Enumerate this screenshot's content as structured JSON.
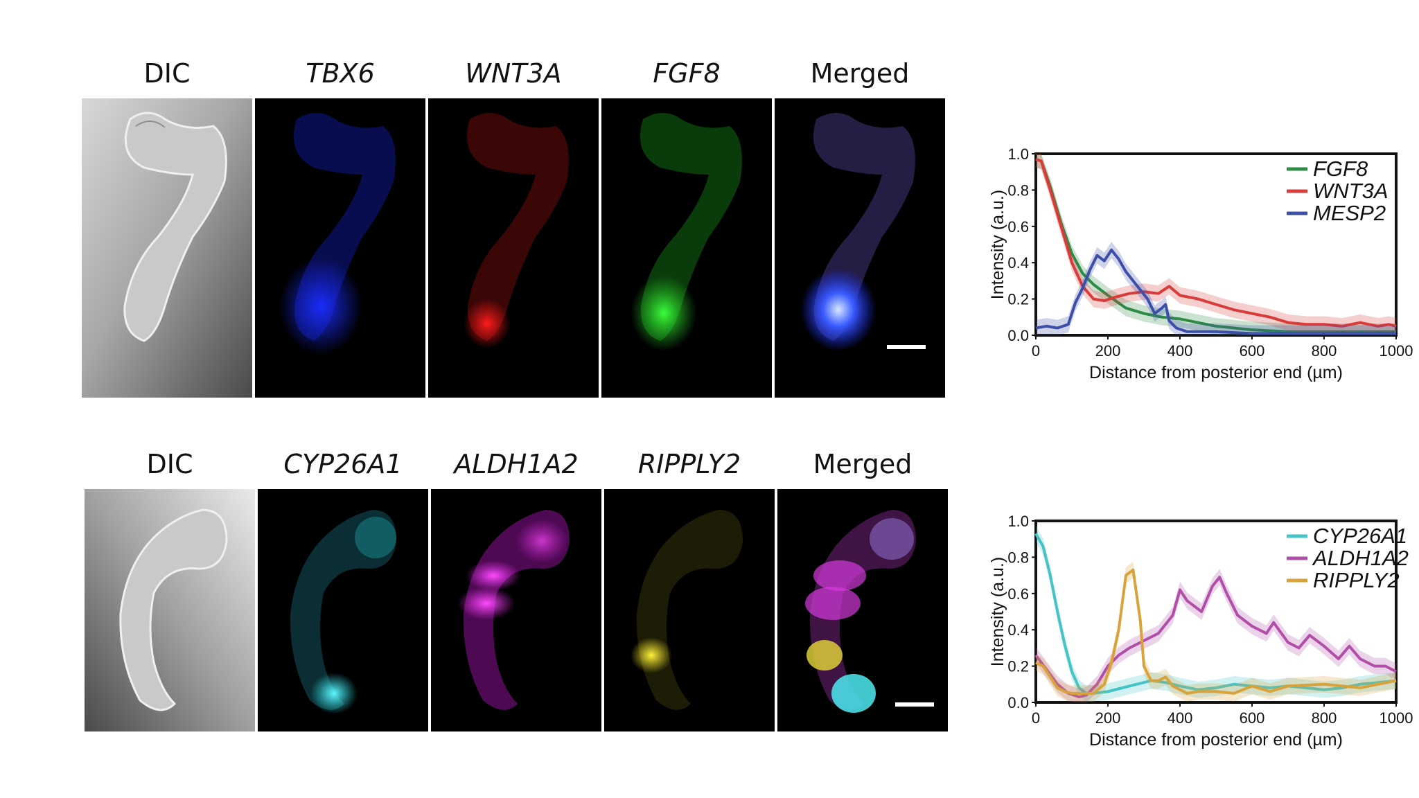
{
  "figure": {
    "row1": {
      "labels": [
        "DIC",
        "TBX6",
        "WNT3A",
        "FGF8",
        "Merged"
      ],
      "italic": [
        false,
        true,
        true,
        true,
        false
      ]
    },
    "row2": {
      "labels": [
        "DIC",
        "CYP26A1",
        "ALDH1A2",
        "RIPPLY2",
        "Merged"
      ],
      "italic": [
        false,
        true,
        true,
        true,
        false
      ]
    },
    "colors": {
      "tbx6": "#1a2dff",
      "wnt3a": "#e01616",
      "fgf8": "#22c322",
      "cyp26a1": "#2ee6ee",
      "aldh1a2": "#e02ce6",
      "ripply2": "#eee02a"
    }
  },
  "chart_data": [
    {
      "type": "line",
      "xlabel": "Distance from posterior end (µm)",
      "ylabel": "Intensity (a.u.)",
      "xlim": [
        0,
        1000
      ],
      "ylim": [
        0,
        1.0
      ],
      "xticks": [
        0,
        200,
        400,
        600,
        800,
        1000
      ],
      "yticks": [
        0.0,
        0.2,
        0.4,
        0.6,
        0.8,
        1.0
      ],
      "legend_position": "top-right",
      "series": [
        {
          "name": "FGF8",
          "color": "#2e8b45",
          "x": [
            0,
            15,
            40,
            70,
            100,
            130,
            160,
            200,
            250,
            300,
            350,
            400,
            500,
            600,
            700,
            800,
            900,
            1000
          ],
          "y": [
            0.97,
            0.96,
            0.82,
            0.62,
            0.45,
            0.34,
            0.28,
            0.22,
            0.15,
            0.12,
            0.1,
            0.09,
            0.05,
            0.03,
            0.02,
            0.02,
            0.02,
            0.02
          ]
        },
        {
          "name": "WNT3A",
          "color": "#d93a3a",
          "x": [
            0,
            15,
            40,
            70,
            100,
            130,
            160,
            190,
            220,
            260,
            300,
            340,
            370,
            400,
            450,
            500,
            550,
            600,
            650,
            700,
            750,
            800,
            850,
            900,
            950,
            980,
            1000
          ],
          "y": [
            0.97,
            0.96,
            0.8,
            0.6,
            0.4,
            0.27,
            0.2,
            0.19,
            0.21,
            0.23,
            0.24,
            0.23,
            0.27,
            0.22,
            0.2,
            0.17,
            0.14,
            0.12,
            0.1,
            0.07,
            0.06,
            0.06,
            0.05,
            0.07,
            0.05,
            0.06,
            0.05
          ]
        },
        {
          "name": "MESP2",
          "color": "#3c4fa8",
          "x": [
            0,
            30,
            60,
            90,
            110,
            130,
            150,
            170,
            190,
            210,
            230,
            250,
            270,
            290,
            310,
            330,
            350,
            360,
            370,
            390,
            420,
            500,
            600,
            800,
            1000
          ],
          "y": [
            0.04,
            0.05,
            0.04,
            0.06,
            0.18,
            0.26,
            0.36,
            0.44,
            0.41,
            0.47,
            0.42,
            0.35,
            0.3,
            0.25,
            0.2,
            0.12,
            0.15,
            0.17,
            0.08,
            0.04,
            0.02,
            0.02,
            0.01,
            0.01,
            0.01
          ]
        }
      ]
    },
    {
      "type": "line",
      "xlabel": "Distance from posterior end (µm)",
      "ylabel": "Intensity (a.u.)",
      "xlim": [
        0,
        1000
      ],
      "ylim": [
        0,
        1.0
      ],
      "xticks": [
        0,
        200,
        400,
        600,
        800,
        1000
      ],
      "yticks": [
        0.0,
        0.2,
        0.4,
        0.6,
        0.8,
        1.0
      ],
      "legend_position": "top-right",
      "series": [
        {
          "name": "CYP26A1",
          "color": "#45c3c6",
          "x": [
            0,
            20,
            40,
            60,
            80,
            100,
            120,
            140,
            160,
            200,
            240,
            280,
            320,
            360,
            400,
            450,
            500,
            550,
            600,
            650,
            700,
            750,
            800,
            850,
            900,
            950,
            1000
          ],
          "y": [
            0.93,
            0.86,
            0.7,
            0.5,
            0.32,
            0.17,
            0.08,
            0.05,
            0.05,
            0.06,
            0.08,
            0.1,
            0.12,
            0.11,
            0.09,
            0.07,
            0.08,
            0.1,
            0.09,
            0.08,
            0.09,
            0.08,
            0.07,
            0.08,
            0.1,
            0.11,
            0.12
          ]
        },
        {
          "name": "ALDH1A2",
          "color": "#b04ea8",
          "x": [
            0,
            30,
            60,
            90,
            120,
            140,
            170,
            200,
            230,
            260,
            300,
            340,
            380,
            400,
            420,
            460,
            490,
            510,
            530,
            560,
            600,
            640,
            660,
            700,
            730,
            760,
            800,
            840,
            870,
            900,
            940,
            970,
            1000
          ],
          "y": [
            0.26,
            0.18,
            0.1,
            0.05,
            0.03,
            0.04,
            0.1,
            0.2,
            0.26,
            0.3,
            0.34,
            0.38,
            0.48,
            0.62,
            0.56,
            0.5,
            0.64,
            0.69,
            0.6,
            0.48,
            0.42,
            0.38,
            0.44,
            0.33,
            0.3,
            0.37,
            0.31,
            0.24,
            0.31,
            0.24,
            0.2,
            0.2,
            0.17
          ]
        },
        {
          "name": "RIPPLY2",
          "color": "#d9a23a",
          "x": [
            0,
            20,
            40,
            60,
            80,
            100,
            130,
            160,
            190,
            210,
            230,
            250,
            270,
            290,
            300,
            320,
            340,
            360,
            380,
            400,
            420,
            450,
            500,
            550,
            600,
            650,
            700,
            800,
            900,
            1000
          ],
          "y": [
            0.22,
            0.2,
            0.14,
            0.08,
            0.06,
            0.05,
            0.05,
            0.05,
            0.1,
            0.22,
            0.4,
            0.7,
            0.73,
            0.45,
            0.2,
            0.12,
            0.12,
            0.14,
            0.09,
            0.07,
            0.05,
            0.06,
            0.06,
            0.05,
            0.09,
            0.06,
            0.09,
            0.1,
            0.08,
            0.12
          ]
        }
      ]
    }
  ]
}
